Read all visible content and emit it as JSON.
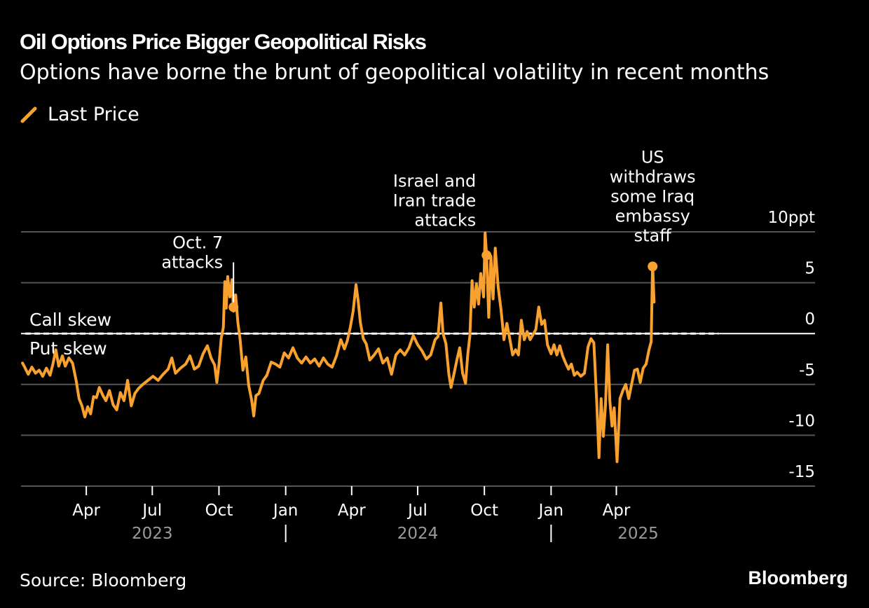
{
  "header": {
    "title": "Oil Options Price Bigger Geopolitical Risks",
    "subtitle": "Options have borne the brunt of geopolitical volatility in recent months"
  },
  "legend": {
    "label": "Last Price",
    "icon": "line-swatch-icon"
  },
  "footer": {
    "source": "Source: Bloomberg",
    "brand": "Bloomberg"
  },
  "colors": {
    "line": "#f9a12e",
    "grid": "#555555",
    "zero": "#ffffff",
    "year_text": "#9a9a9a",
    "background": "#000000"
  },
  "chart_data": {
    "type": "line",
    "title": "Oil Options Price Bigger Geopolitical Risks",
    "subtitle": "Options have borne the brunt of geopolitical volatility in recent months",
    "unit": "ppt",
    "ylim": [
      -15,
      10
    ],
    "xlim": [
      "2023-01-03",
      "2025-08-29"
    ],
    "y_ticks": [
      {
        "value": 10,
        "label": "10ppt"
      },
      {
        "value": 5,
        "label": "5"
      },
      {
        "value": 0,
        "label": "0"
      },
      {
        "value": -5,
        "label": "-5"
      },
      {
        "value": -10,
        "label": "-10"
      },
      {
        "value": -15,
        "label": "-15"
      }
    ],
    "x_ticks": [
      {
        "date": "2023-04-01",
        "label": "Apr"
      },
      {
        "date": "2023-07-01",
        "label": "Jul"
      },
      {
        "date": "2023-10-01",
        "label": "Oct"
      },
      {
        "date": "2024-01-01",
        "label": "Jan"
      },
      {
        "date": "2024-04-01",
        "label": "Apr"
      },
      {
        "date": "2024-07-01",
        "label": "Jul"
      },
      {
        "date": "2024-10-01",
        "label": "Oct"
      },
      {
        "date": "2025-01-01",
        "label": "Jan"
      },
      {
        "date": "2025-04-01",
        "label": "Apr"
      }
    ],
    "year_labels": [
      {
        "label": "2023",
        "date": "2023-07-01"
      },
      {
        "label": "2024",
        "date": "2024-07-01"
      },
      {
        "label": "2025",
        "date": "2025-05-01"
      }
    ],
    "year_separators": [
      "2024-01-01",
      "2025-01-01"
    ],
    "zero_line_labels": {
      "above": "Call skew",
      "below": "Put skew"
    },
    "series": [
      {
        "name": "Last Price",
        "points": [
          [
            "2023-01-03",
            -2.9
          ],
          [
            "2023-01-06",
            -3.3
          ],
          [
            "2023-01-11",
            -4.0
          ],
          [
            "2023-01-16",
            -3.3
          ],
          [
            "2023-01-21",
            -3.9
          ],
          [
            "2023-01-26",
            -3.6
          ],
          [
            "2023-01-31",
            -4.2
          ],
          [
            "2023-02-05",
            -3.4
          ],
          [
            "2023-02-10",
            -4.1
          ],
          [
            "2023-02-14",
            -3.0
          ],
          [
            "2023-02-18",
            -1.6
          ],
          [
            "2023-02-22",
            -3.2
          ],
          [
            "2023-02-27",
            -2.2
          ],
          [
            "2023-03-03",
            -3.2
          ],
          [
            "2023-03-08",
            -2.4
          ],
          [
            "2023-03-13",
            -2.9
          ],
          [
            "2023-03-18",
            -4.6
          ],
          [
            "2023-03-22",
            -6.4
          ],
          [
            "2023-03-26",
            -7.1
          ],
          [
            "2023-03-30",
            -8.2
          ],
          [
            "2023-04-03",
            -7.2
          ],
          [
            "2023-04-07",
            -7.9
          ],
          [
            "2023-04-11",
            -6.2
          ],
          [
            "2023-04-15",
            -6.3
          ],
          [
            "2023-04-19",
            -5.3
          ],
          [
            "2023-04-24",
            -6.1
          ],
          [
            "2023-04-28",
            -6.6
          ],
          [
            "2023-05-03",
            -5.6
          ],
          [
            "2023-05-08",
            -7.0
          ],
          [
            "2023-05-13",
            -7.5
          ],
          [
            "2023-05-18",
            -5.8
          ],
          [
            "2023-05-23",
            -6.6
          ],
          [
            "2023-05-28",
            -4.6
          ],
          [
            "2023-06-02",
            -7.1
          ],
          [
            "2023-06-07",
            -5.9
          ],
          [
            "2023-06-12",
            -5.4
          ],
          [
            "2023-06-18",
            -5.0
          ],
          [
            "2023-06-25",
            -4.6
          ],
          [
            "2023-07-02",
            -4.2
          ],
          [
            "2023-07-09",
            -4.6
          ],
          [
            "2023-07-16",
            -4.0
          ],
          [
            "2023-07-23",
            -3.5
          ],
          [
            "2023-07-28",
            -2.4
          ],
          [
            "2023-08-02",
            -3.9
          ],
          [
            "2023-08-09",
            -3.4
          ],
          [
            "2023-08-16",
            -3.0
          ],
          [
            "2023-08-22",
            -2.2
          ],
          [
            "2023-08-28",
            -3.5
          ],
          [
            "2023-09-03",
            -3.2
          ],
          [
            "2023-09-09",
            -2.0
          ],
          [
            "2023-09-15",
            -1.2
          ],
          [
            "2023-09-20",
            -2.4
          ],
          [
            "2023-09-25",
            -3.1
          ],
          [
            "2023-09-28",
            -4.8
          ],
          [
            "2023-10-01",
            -3.0
          ],
          [
            "2023-10-04",
            -0.5
          ],
          [
            "2023-10-07",
            0.6
          ],
          [
            "2023-10-09",
            5.1
          ],
          [
            "2023-10-11",
            2.5
          ],
          [
            "2023-10-13",
            5.6
          ],
          [
            "2023-10-16",
            3.6
          ],
          [
            "2023-10-19",
            5.3
          ],
          [
            "2023-10-21",
            2.2
          ],
          [
            "2023-10-24",
            3.8
          ],
          [
            "2023-10-27",
            1.1
          ],
          [
            "2023-10-30",
            -0.5
          ],
          [
            "2023-11-03",
            -3.6
          ],
          [
            "2023-11-07",
            -2.3
          ],
          [
            "2023-11-11",
            -5.1
          ],
          [
            "2023-11-15",
            -6.5
          ],
          [
            "2023-11-18",
            -8.1
          ],
          [
            "2023-11-21",
            -6.1
          ],
          [
            "2023-11-25",
            -5.9
          ],
          [
            "2023-12-01",
            -4.6
          ],
          [
            "2023-12-06",
            -4.1
          ],
          [
            "2023-12-12",
            -2.8
          ],
          [
            "2023-12-18",
            -3.0
          ],
          [
            "2023-12-24",
            -3.3
          ],
          [
            "2023-12-30",
            -1.9
          ],
          [
            "2024-01-05",
            -2.4
          ],
          [
            "2024-01-11",
            -1.4
          ],
          [
            "2024-01-17",
            -2.4
          ],
          [
            "2024-01-23",
            -2.9
          ],
          [
            "2024-01-29",
            -2.3
          ],
          [
            "2024-02-04",
            -2.9
          ],
          [
            "2024-02-10",
            -2.5
          ],
          [
            "2024-02-16",
            -3.2
          ],
          [
            "2024-02-22",
            -2.4
          ],
          [
            "2024-02-28",
            -3.0
          ],
          [
            "2024-03-05",
            -3.3
          ],
          [
            "2024-03-11",
            -2.2
          ],
          [
            "2024-03-17",
            -0.6
          ],
          [
            "2024-03-22",
            -1.5
          ],
          [
            "2024-03-26",
            -0.7
          ],
          [
            "2024-03-30",
            0.6
          ],
          [
            "2024-04-03",
            2.2
          ],
          [
            "2024-04-07",
            4.8
          ],
          [
            "2024-04-10",
            3.2
          ],
          [
            "2024-04-13",
            1.1
          ],
          [
            "2024-04-17",
            -0.5
          ],
          [
            "2024-04-21",
            -1.0
          ],
          [
            "2024-04-26",
            -2.6
          ],
          [
            "2024-05-02",
            -2.1
          ],
          [
            "2024-05-08",
            -1.5
          ],
          [
            "2024-05-14",
            -2.9
          ],
          [
            "2024-05-20",
            -2.4
          ],
          [
            "2024-05-26",
            -4.0
          ],
          [
            "2024-06-01",
            -2.1
          ],
          [
            "2024-06-07",
            -1.6
          ],
          [
            "2024-06-13",
            -2.1
          ],
          [
            "2024-06-19",
            -1.4
          ],
          [
            "2024-06-25",
            -0.2
          ],
          [
            "2024-07-01",
            -1.1
          ],
          [
            "2024-07-07",
            -1.7
          ],
          [
            "2024-07-13",
            -2.5
          ],
          [
            "2024-07-19",
            -2.1
          ],
          [
            "2024-07-25",
            -0.6
          ],
          [
            "2024-07-29",
            -0.3
          ],
          [
            "2024-08-02",
            3.0
          ],
          [
            "2024-08-05",
            0.0
          ],
          [
            "2024-08-09",
            -1.0
          ],
          [
            "2024-08-13",
            -4.0
          ],
          [
            "2024-08-16",
            -5.3
          ],
          [
            "2024-08-20",
            -4.0
          ],
          [
            "2024-08-24",
            -2.6
          ],
          [
            "2024-08-28",
            -1.4
          ],
          [
            "2024-09-01",
            -3.9
          ],
          [
            "2024-09-05",
            -4.9
          ],
          [
            "2024-09-08",
            -2.1
          ],
          [
            "2024-09-11",
            -0.2
          ],
          [
            "2024-09-14",
            5.2
          ],
          [
            "2024-09-17",
            2.6
          ],
          [
            "2024-09-20",
            4.9
          ],
          [
            "2024-09-23",
            2.9
          ],
          [
            "2024-09-26",
            5.9
          ],
          [
            "2024-09-30",
            3.6
          ],
          [
            "2024-10-02",
            9.9
          ],
          [
            "2024-10-04",
            7.7
          ],
          [
            "2024-10-07",
            1.6
          ],
          [
            "2024-10-10",
            7.6
          ],
          [
            "2024-10-13",
            3.4
          ],
          [
            "2024-10-16",
            8.4
          ],
          [
            "2024-10-20",
            4.6
          ],
          [
            "2024-10-24",
            2.3
          ],
          [
            "2024-10-28",
            -0.6
          ],
          [
            "2024-11-01",
            1.0
          ],
          [
            "2024-11-05",
            -0.5
          ],
          [
            "2024-11-09",
            -2.1
          ],
          [
            "2024-11-13",
            -1.6
          ],
          [
            "2024-11-17",
            -2.1
          ],
          [
            "2024-11-21",
            1.3
          ],
          [
            "2024-11-25",
            -0.6
          ],
          [
            "2024-11-29",
            0.2
          ],
          [
            "2024-12-03",
            -0.6
          ],
          [
            "2024-12-07",
            -0.1
          ],
          [
            "2024-12-11",
            0.4
          ],
          [
            "2024-12-15",
            2.6
          ],
          [
            "2024-12-19",
            0.9
          ],
          [
            "2024-12-23",
            1.3
          ],
          [
            "2024-12-27",
            -1.1
          ],
          [
            "2025-01-01",
            -2.0
          ],
          [
            "2025-01-05",
            -1.1
          ],
          [
            "2025-01-09",
            -2.1
          ],
          [
            "2025-01-13",
            -1.2
          ],
          [
            "2025-01-17",
            -2.2
          ],
          [
            "2025-01-21",
            -2.9
          ],
          [
            "2025-01-25",
            -3.5
          ],
          [
            "2025-01-29",
            -3.0
          ],
          [
            "2025-02-02",
            -4.1
          ],
          [
            "2025-02-06",
            -3.8
          ],
          [
            "2025-02-11",
            -4.2
          ],
          [
            "2025-02-16",
            -3.9
          ],
          [
            "2025-02-21",
            -1.3
          ],
          [
            "2025-02-25",
            -0.5
          ],
          [
            "2025-03-01",
            -0.9
          ],
          [
            "2025-03-05",
            -6.9
          ],
          [
            "2025-03-08",
            -12.2
          ],
          [
            "2025-03-11",
            -6.4
          ],
          [
            "2025-03-14",
            -10.1
          ],
          [
            "2025-03-17",
            -7.0
          ],
          [
            "2025-03-20",
            -1.1
          ],
          [
            "2025-03-23",
            -6.6
          ],
          [
            "2025-03-26",
            -9.1
          ],
          [
            "2025-03-29",
            -7.3
          ],
          [
            "2025-04-02",
            -12.6
          ],
          [
            "2025-04-06",
            -6.4
          ],
          [
            "2025-04-10",
            -5.6
          ],
          [
            "2025-04-14",
            -5.0
          ],
          [
            "2025-04-18",
            -6.4
          ],
          [
            "2025-04-22",
            -5.0
          ],
          [
            "2025-04-26",
            -3.6
          ],
          [
            "2025-04-30",
            -3.5
          ],
          [
            "2025-05-04",
            -4.8
          ],
          [
            "2025-05-08",
            -3.4
          ],
          [
            "2025-05-12",
            -3.0
          ],
          [
            "2025-05-16",
            -1.6
          ],
          [
            "2025-05-19",
            -0.8
          ],
          [
            "2025-05-21",
            6.9
          ],
          [
            "2025-05-23",
            3.1
          ]
        ]
      }
    ],
    "annotations": [
      {
        "text": [
          "Oct. 7",
          "attacks"
        ],
        "date": "2023-10-21",
        "value": 2.6
      },
      {
        "text": [
          "Israel and",
          "Iran trade",
          "attacks"
        ],
        "date": "2024-10-04",
        "value": 7.7
      },
      {
        "text": [
          "US",
          "withdraws",
          "some Iraq",
          "embassy",
          "staff"
        ],
        "date": "2025-05-21",
        "value": 6.6
      }
    ]
  }
}
